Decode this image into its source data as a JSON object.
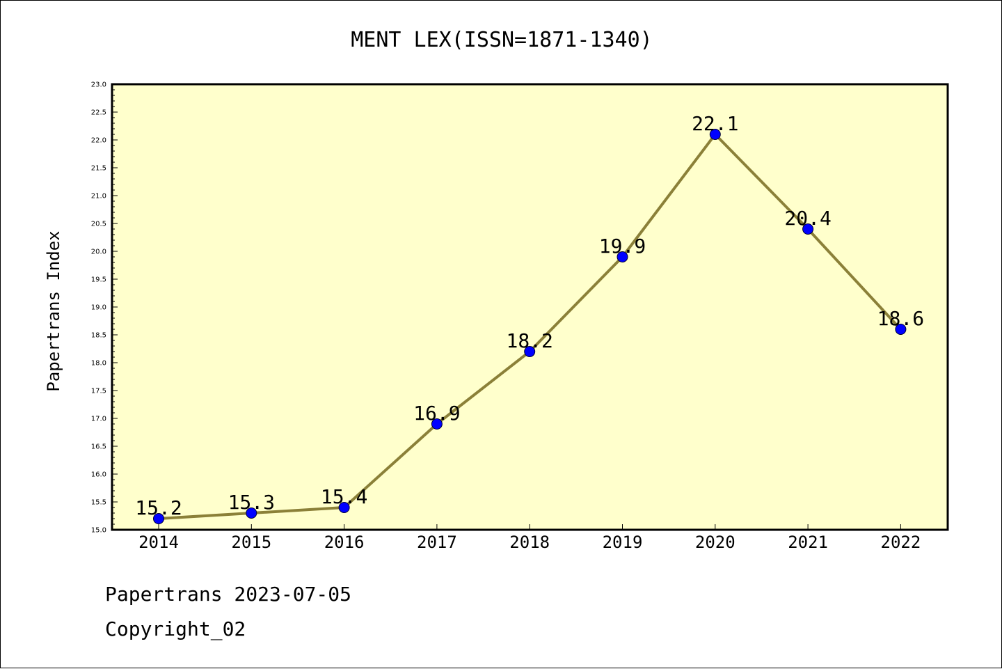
{
  "chart_data": {
    "type": "line",
    "title": "MENT LEX(ISSN=1871-1340)",
    "xlabel": "",
    "ylabel": "Papertrans Index",
    "categories": [
      "2014",
      "2015",
      "2016",
      "2017",
      "2018",
      "2019",
      "2020",
      "2021",
      "2022"
    ],
    "values": [
      15.2,
      15.3,
      15.4,
      16.9,
      18.2,
      19.9,
      22.1,
      20.4,
      18.6
    ],
    "data_labels": [
      "15.2",
      "15.3",
      "15.4",
      "16.9",
      "18.2",
      "19.9",
      "22.1",
      "20.4",
      "18.6"
    ],
    "ylim": [
      15.0,
      23.0
    ],
    "yticks": [
      "15.0",
      "15.5",
      "16.0",
      "16.5",
      "17.0",
      "17.5",
      "18.0",
      "18.5",
      "19.0",
      "19.5",
      "20.0",
      "20.5",
      "21.0",
      "21.5",
      "22.0",
      "22.5",
      "23.0"
    ],
    "grid": false,
    "colors": {
      "plot_background": "#FFFFCC",
      "line": "#8B8038",
      "marker": "#0000FF"
    }
  },
  "footer": {
    "line1": "Papertrans 2023-07-05",
    "line2": "Copyright_02"
  }
}
